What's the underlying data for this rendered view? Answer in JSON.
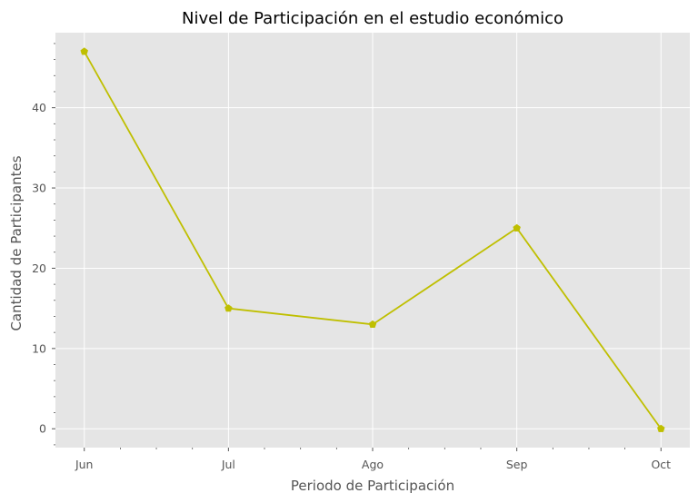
{
  "chart_data": {
    "type": "line",
    "title": "Nivel de Participación en el estudio económico",
    "xlabel": "Periodo de Participación",
    "ylabel": "Cantidad de Participantes",
    "categories": [
      "Jun",
      "Jul",
      "Ago",
      "Sep",
      "Oct"
    ],
    "series": [
      {
        "values": [
          47,
          15,
          13,
          25,
          0
        ],
        "color": "#bfbf00",
        "marker": "pentagon"
      }
    ],
    "yticks": [
      0,
      10,
      20,
      30,
      40
    ],
    "ylim": [
      -2.35,
      49.35
    ],
    "grid": true,
    "background": "#e5e5e5",
    "gridColor": "#ffffff"
  }
}
